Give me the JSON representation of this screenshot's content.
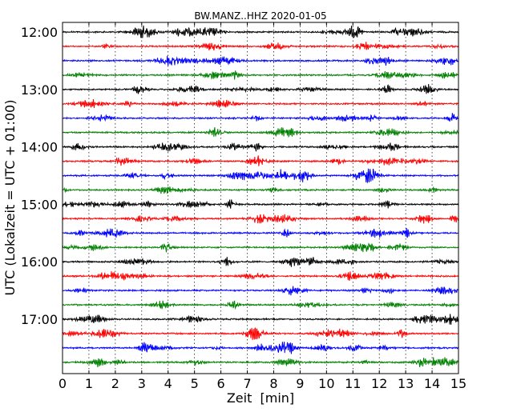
{
  "chart_data": {
    "type": "line",
    "title": "BW.MANZ..HHZ 2020-01-05",
    "xlabel": "Zeit  [min]",
    "ylabel": "UTC (Lokalzeit = UTC + 01:00)",
    "xlim": [
      0,
      15
    ],
    "x_ticks": [
      0,
      1,
      2,
      3,
      4,
      5,
      6,
      7,
      8,
      9,
      10,
      11,
      12,
      13,
      14,
      15
    ],
    "x_tick_labels": [
      "0",
      "1",
      "2",
      "3",
      "4",
      "5",
      "6",
      "7",
      "8",
      "9",
      "10",
      "11",
      "12",
      "13",
      "14",
      "15"
    ],
    "y_tick_labels": [
      "12:00",
      "13:00",
      "14:00",
      "15:00",
      "16:00",
      "17:00"
    ],
    "grid": "vertical-dotted",
    "trace_colors": [
      "#000000",
      "#ff0000",
      "#0000ff",
      "#008000"
    ],
    "traces": [
      {
        "start": "12:00",
        "color": "#000000"
      },
      {
        "start": "12:15",
        "color": "#ff0000"
      },
      {
        "start": "12:30",
        "color": "#0000ff"
      },
      {
        "start": "12:45",
        "color": "#008000"
      },
      {
        "start": "13:00",
        "color": "#000000"
      },
      {
        "start": "13:15",
        "color": "#ff0000"
      },
      {
        "start": "13:30",
        "color": "#0000ff"
      },
      {
        "start": "13:45",
        "color": "#008000"
      },
      {
        "start": "14:00",
        "color": "#000000"
      },
      {
        "start": "14:15",
        "color": "#ff0000"
      },
      {
        "start": "14:30",
        "color": "#0000ff"
      },
      {
        "start": "14:45",
        "color": "#008000"
      },
      {
        "start": "15:00",
        "color": "#000000"
      },
      {
        "start": "15:15",
        "color": "#ff0000"
      },
      {
        "start": "15:30",
        "color": "#0000ff"
      },
      {
        "start": "15:45",
        "color": "#008000"
      },
      {
        "start": "16:00",
        "color": "#000000"
      },
      {
        "start": "16:15",
        "color": "#ff0000"
      },
      {
        "start": "16:30",
        "color": "#0000ff"
      },
      {
        "start": "16:45",
        "color": "#008000"
      },
      {
        "start": "17:00",
        "color": "#000000"
      },
      {
        "start": "17:15",
        "color": "#ff0000"
      },
      {
        "start": "17:30",
        "color": "#0000ff"
      },
      {
        "start": "17:45",
        "color": "#008000"
      }
    ]
  }
}
